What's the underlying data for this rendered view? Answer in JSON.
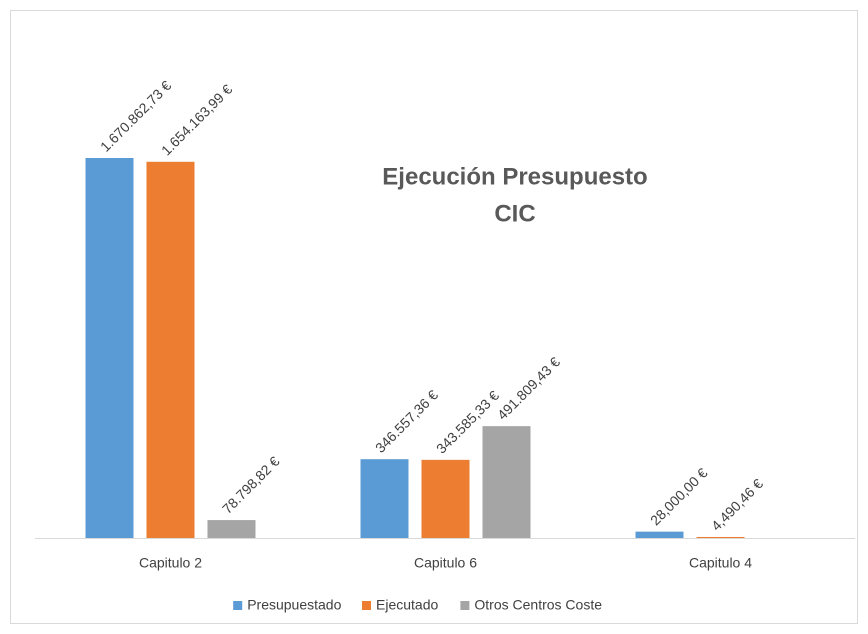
{
  "chart_data": {
    "type": "bar",
    "title": "Ejecución Presupuesto",
    "subtitle": "CIC",
    "categories": [
      "Capitulo 2",
      "Capitulo 6",
      "Capitulo 4"
    ],
    "series": [
      {
        "name": "Presupuestado",
        "color": "#5b9bd5",
        "values": [
          1670862.73,
          346557.36,
          28000.0
        ],
        "value_labels": [
          "1.670.862,73 €",
          "346.557,36 €",
          "28,000,00 €"
        ]
      },
      {
        "name": "Ejecutado",
        "color": "#ed7d31",
        "values": [
          1654163.99,
          343585.33,
          4490.46
        ],
        "value_labels": [
          "1.654.163,99 €",
          "343.585,33 €",
          "4,490,46 €"
        ]
      },
      {
        "name": "Otros Centros Coste",
        "color": "#a5a5a5",
        "values": [
          78798.82,
          491809.43,
          null
        ],
        "value_labels": [
          "78.798,82 €",
          "491.809,43 €",
          null
        ]
      }
    ],
    "legend": "bottom"
  }
}
